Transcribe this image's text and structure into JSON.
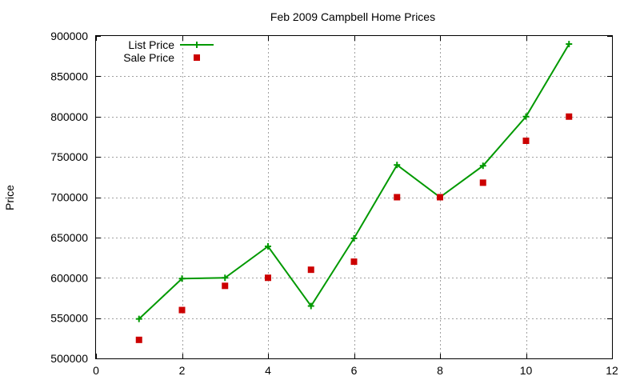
{
  "chart_data": {
    "type": "line",
    "title": "Feb 2009 Campbell Home Prices",
    "xlabel": "",
    "ylabel": "Price",
    "xlim": [
      0,
      12
    ],
    "ylim": [
      500000,
      900000
    ],
    "x_ticks": [
      0,
      2,
      4,
      6,
      8,
      10,
      12
    ],
    "y_ticks": [
      500000,
      550000,
      600000,
      650000,
      700000,
      750000,
      800000,
      850000,
      900000
    ],
    "grid": true,
    "legend_position": "top-left",
    "x": [
      1,
      2,
      3,
      4,
      5,
      6,
      7,
      8,
      9,
      10,
      11
    ],
    "series": [
      {
        "name": "List Price",
        "style": "lines+points",
        "marker": "plus",
        "color": "#009900",
        "values": [
          549000,
          599000,
          600000,
          639000,
          565000,
          649000,
          740000,
          700000,
          739000,
          800000,
          890000
        ]
      },
      {
        "name": "Sale Price",
        "style": "points",
        "marker": "square",
        "color": "#cc0000",
        "values": [
          523000,
          560000,
          590000,
          600000,
          610000,
          620000,
          700000,
          700000,
          718000,
          770000,
          800000
        ]
      }
    ]
  }
}
